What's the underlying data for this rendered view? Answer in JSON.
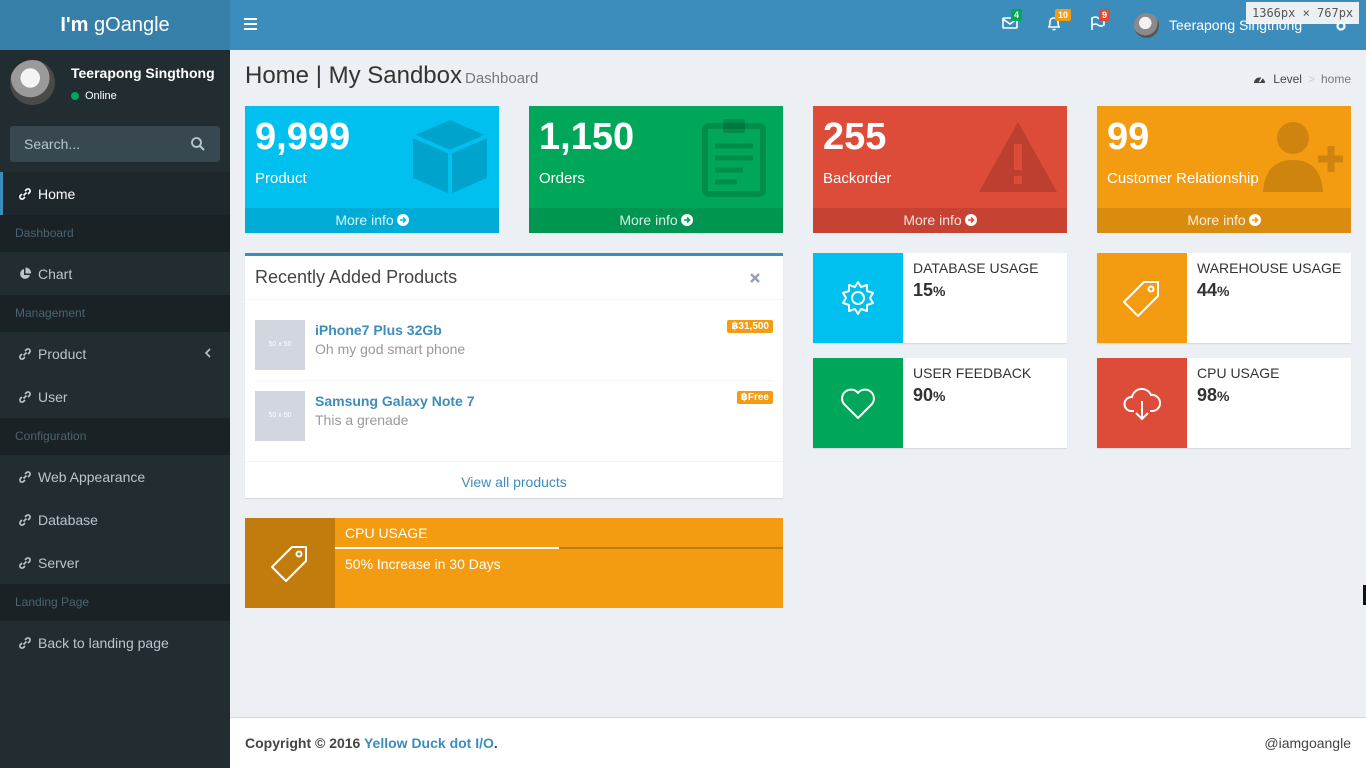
{
  "logo": {
    "bold": "I'm",
    "rest": " gOangle"
  },
  "dimension_label": "1366px  ×  767px",
  "navbar": {
    "messages_count": "4",
    "notifications_count": "10",
    "tasks_count": "9",
    "user_name": "Teerapong Singthong"
  },
  "colors": {
    "aqua": "#00c0ef",
    "green": "#00a65a",
    "red": "#dd4b39",
    "yellow": "#f39c12",
    "primary": "#3c8dbc"
  },
  "sidebar": {
    "user_name": "Teerapong Singthong",
    "status": "Online",
    "search_placeholder": "Search...",
    "items": {
      "home": "Home",
      "header_dashboard": "Dashboard",
      "chart": "Chart",
      "header_management": "Management",
      "product": "Product",
      "user": "User",
      "header_configuration": "Configuration",
      "web_appearance": "Web Appearance",
      "database": "Database",
      "server": "Server",
      "header_landing": "Landing Page",
      "back_landing": "Back to landing page"
    }
  },
  "content_header": {
    "title": "Home | My Sandbox",
    "subtitle": "Dashboard"
  },
  "breadcrumb": {
    "level": "Level",
    "separator": ">",
    "current": "home"
  },
  "stat_boxes": [
    {
      "value": "9,999",
      "label": "Product",
      "footer": "More info",
      "icon": "cube-icon"
    },
    {
      "value": "1,150",
      "label": "Orders",
      "footer": "More info",
      "icon": "clipboard-icon"
    },
    {
      "value": "255",
      "label": "Backorder",
      "footer": "More info",
      "icon": "warning-icon"
    },
    {
      "value": "99",
      "label": "Customer Relationship",
      "footer": "More info",
      "icon": "user-plus-icon"
    }
  ],
  "products_box": {
    "title": "Recently Added Products",
    "thumb_label": "50 x 50",
    "items": [
      {
        "name": "iPhone7 Plus 32Gb",
        "desc": "Oh my god smart phone",
        "price": "฿31,500"
      },
      {
        "name": "Samsung Galaxy Note 7",
        "desc": "This a grenade",
        "price": "฿Free"
      }
    ],
    "view_all": "View all products"
  },
  "info_boxes": [
    {
      "label": "DATABASE USAGE",
      "value": "15",
      "unit": "%",
      "icon": "gear-icon"
    },
    {
      "label": "WAREHOUSE USAGE",
      "value": "44",
      "unit": "%",
      "icon": "tag-icon"
    },
    {
      "label": "USER FEEDBACK",
      "value": "90",
      "unit": "%",
      "icon": "heart-icon"
    },
    {
      "label": "CPU USAGE",
      "value": "98",
      "unit": "%",
      "icon": "cloud-download-icon"
    }
  ],
  "cpu_progress": {
    "label": "CPU USAGE",
    "progress_percent": 50,
    "desc": "50% Increase in 30 Days"
  },
  "footer": {
    "copyright": "Copyright © 2016 ",
    "company": "Yellow Duck dot I/O",
    "dot": ".",
    "handle": "@iamgoangle"
  }
}
